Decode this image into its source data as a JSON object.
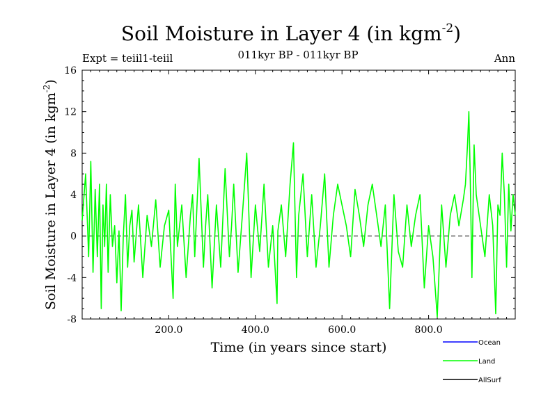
{
  "chart_data": {
    "type": "line",
    "title": "Soil Moisture in Layer 4 (in kgm",
    "title_sup": "-2",
    "title_end": ")",
    "subtitle": "011kyr BP - 011kyr BP",
    "expt_label": "Expt = teiil1-teiil",
    "season_label": "Ann",
    "xlabel": "Time (in years since start)",
    "ylabel": "Soil Moisture in Layer 4 (in kgm",
    "ylabel_sup": "-2",
    "ylabel_end": ")",
    "xlim": [
      0,
      1000
    ],
    "ylim": [
      -8,
      16
    ],
    "xticks": [
      200,
      400,
      600,
      800
    ],
    "xtick_labels": [
      "200.0",
      "400.0",
      "600.0",
      "800.0"
    ],
    "yticks": [
      -8,
      -4,
      0,
      4,
      8,
      12,
      16
    ],
    "ytick_labels": [
      "-8",
      "-4",
      "0",
      "4",
      "8",
      "12",
      "16"
    ],
    "zero_line": 0,
    "grid": false,
    "legend_position": "bottom-right",
    "series": [
      {
        "name": "Ocean",
        "color": "#0000ff",
        "values": []
      },
      {
        "name": "Land",
        "color": "#00ff00",
        "x": [
          0,
          8,
          15,
          20,
          25,
          30,
          35,
          40,
          44,
          48,
          52,
          56,
          60,
          65,
          70,
          75,
          80,
          85,
          90,
          95,
          100,
          105,
          110,
          115,
          120,
          130,
          140,
          150,
          160,
          170,
          180,
          190,
          200,
          210,
          215,
          220,
          230,
          240,
          250,
          255,
          260,
          270,
          280,
          285,
          290,
          300,
          310,
          320,
          330,
          340,
          345,
          350,
          360,
          370,
          380,
          390,
          400,
          410,
          420,
          430,
          440,
          450,
          452,
          460,
          470,
          480,
          488,
          495,
          500,
          510,
          520,
          530,
          540,
          550,
          560,
          570,
          580,
          590,
          600,
          610,
          620,
          630,
          640,
          650,
          660,
          670,
          680,
          690,
          700,
          710,
          720,
          730,
          740,
          750,
          760,
          770,
          780,
          790,
          800,
          810,
          820,
          830,
          840,
          850,
          860,
          870,
          880,
          885,
          890,
          893,
          896,
          900,
          905,
          910,
          920,
          930,
          940,
          948,
          955,
          960,
          965,
          970,
          975,
          980,
          985,
          990,
          995,
          1000
        ],
        "values": [
          1.5,
          6,
          -2,
          7.2,
          -3.5,
          4.5,
          -2,
          5,
          -7,
          3,
          -1,
          5,
          -3.5,
          4,
          -1,
          1,
          -4.5,
          0.5,
          -7.2,
          0,
          4,
          -3,
          1,
          2.5,
          -2.5,
          3,
          -4,
          2,
          -1,
          3.5,
          -3,
          1,
          2.5,
          -6,
          5,
          -1,
          3,
          -4,
          2,
          4,
          -2,
          7.5,
          -3,
          1,
          4,
          -5,
          3,
          -3,
          6.5,
          -2,
          1,
          5,
          -3.5,
          2,
          8,
          -4,
          3,
          -1.5,
          5,
          -3,
          1,
          -6.5,
          0.5,
          3,
          -2,
          5,
          9,
          -4,
          2,
          6,
          -2,
          4,
          -3,
          1,
          6,
          -3,
          2,
          5,
          3,
          1,
          -2,
          4.5,
          2,
          -1,
          3,
          5,
          2,
          -1,
          3,
          -7,
          4,
          -1.5,
          -3,
          3,
          -1,
          2,
          4,
          -5,
          1,
          -2,
          -7.8,
          3,
          -3,
          2,
          4,
          1,
          3.5,
          5,
          9,
          12,
          6,
          -4,
          8.8,
          4,
          1,
          -2,
          4,
          1,
          -7.5,
          3,
          2,
          8,
          4,
          -3,
          5,
          0.5,
          4,
          2
        ]
      },
      {
        "name": "AllSurf",
        "color": "#000000",
        "values": []
      }
    ]
  },
  "legend": {
    "items": [
      {
        "label": "Ocean",
        "color": "#0000ff"
      },
      {
        "label": "Land",
        "color": "#00ff00"
      },
      {
        "label": "AllSurf",
        "color": "#000000"
      }
    ]
  }
}
